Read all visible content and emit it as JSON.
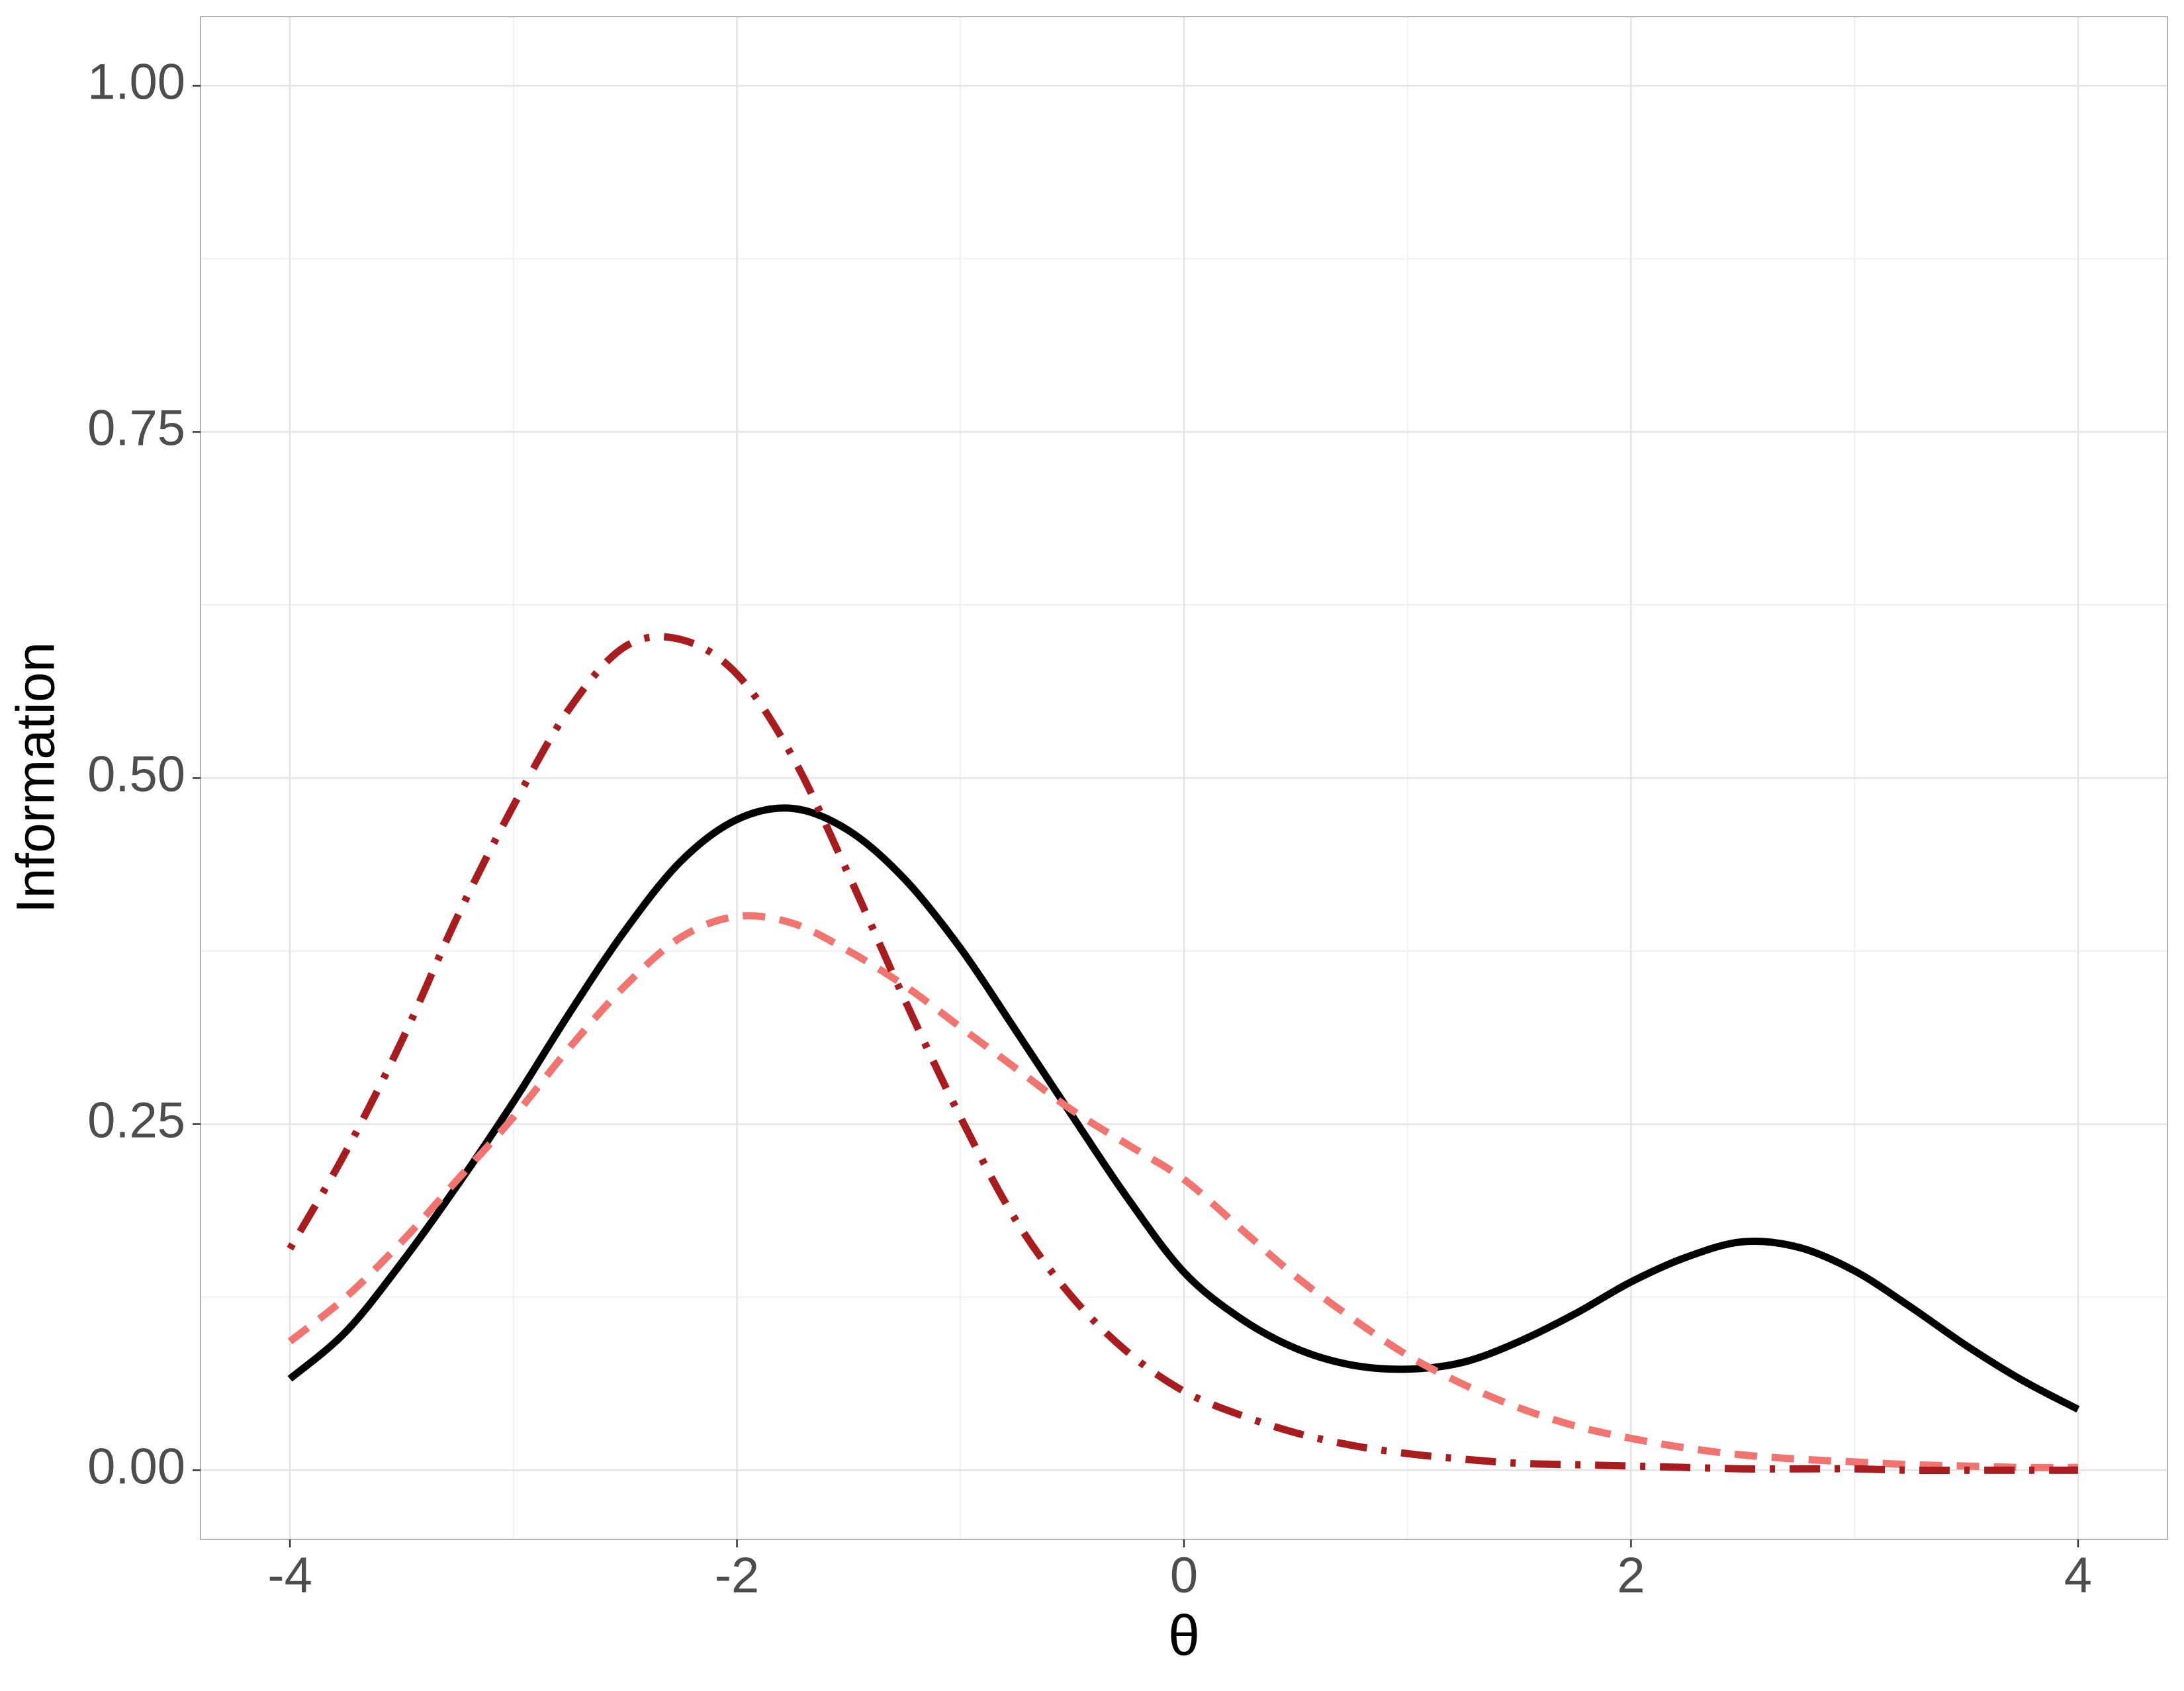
{
  "chart_data": {
    "type": "line",
    "x_label": "θ",
    "y_label": "Information",
    "x": [
      -4,
      -3.75,
      -3.5,
      -3.25,
      -3,
      -2.75,
      -2.5,
      -2.25,
      -2,
      -1.75,
      -1.5,
      -1.25,
      -1,
      -0.75,
      -0.5,
      -0.25,
      0,
      0.25,
      0.5,
      0.75,
      1,
      1.25,
      1.5,
      1.75,
      2,
      2.25,
      2.5,
      2.75,
      3,
      3.25,
      3.5,
      3.75,
      4
    ],
    "series": [
      {
        "color": "#000000",
        "line_style": "solid",
        "values": [
          0.066,
          0.1,
          0.15,
          0.206,
          0.266,
          0.33,
          0.39,
          0.44,
          0.47,
          0.478,
          0.462,
          0.427,
          0.377,
          0.317,
          0.256,
          0.196,
          0.143,
          0.11,
          0.088,
          0.076,
          0.073,
          0.078,
          0.093,
          0.113,
          0.136,
          0.154,
          0.165,
          0.161,
          0.144,
          0.118,
          0.09,
          0.065,
          0.044
        ]
      },
      {
        "color": "#f07470",
        "line_style": "dashed",
        "values": [
          0.093,
          0.125,
          0.165,
          0.21,
          0.255,
          0.305,
          0.35,
          0.385,
          0.4,
          0.395,
          0.375,
          0.35,
          0.32,
          0.29,
          0.26,
          0.235,
          0.21,
          0.175,
          0.14,
          0.11,
          0.083,
          0.062,
          0.045,
          0.032,
          0.023,
          0.016,
          0.011,
          0.008,
          0.006,
          0.004,
          0.003,
          0.002,
          0.002
        ]
      },
      {
        "color": "#a61c1f",
        "line_style": "dotdash",
        "values": [
          0.16,
          0.23,
          0.31,
          0.4,
          0.48,
          0.55,
          0.595,
          0.6,
          0.575,
          0.515,
          0.43,
          0.34,
          0.255,
          0.18,
          0.125,
          0.085,
          0.057,
          0.04,
          0.027,
          0.018,
          0.012,
          0.008,
          0.005,
          0.004,
          0.003,
          0.002,
          0.001,
          0.001,
          0.001,
          0,
          0,
          0,
          0
        ]
      }
    ],
    "xlim": [
      -4.4,
      4.4
    ],
    "ylim": [
      -0.05,
      1.05
    ],
    "xticks": [
      -4,
      -2,
      0,
      2,
      4
    ],
    "yticks": [
      {
        "value": 0,
        "label": "0.00"
      },
      {
        "value": 0.25,
        "label": "0.25"
      },
      {
        "value": 0.5,
        "label": "0.50"
      },
      {
        "value": 0.75,
        "label": "0.75"
      },
      {
        "value": 1,
        "label": "1.00"
      }
    ],
    "grid": true
  }
}
